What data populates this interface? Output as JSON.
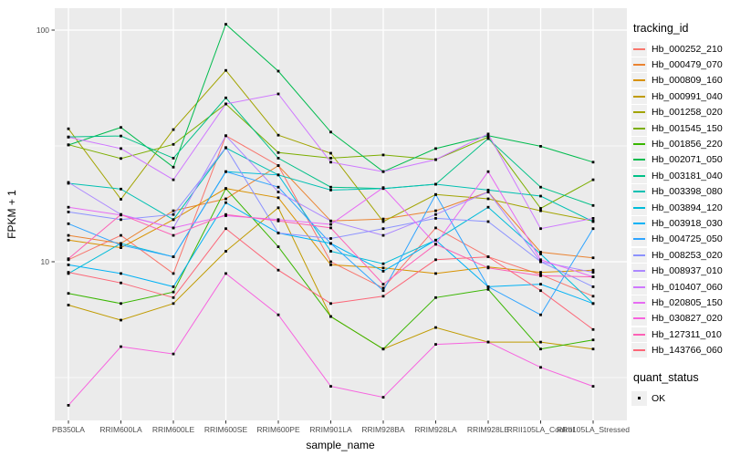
{
  "chart_data": {
    "type": "line",
    "title": "",
    "xlabel": "sample_name",
    "ylabel": "FPKM + 1",
    "y_scale": "log10",
    "y_ticks": [
      {
        "value": 100,
        "label": "100"
      },
      {
        "value": 10,
        "label": "10"
      }
    ],
    "y_minor_ticks": [
      31.623,
      3.162
    ],
    "ylim": [
      2.0,
      125.0
    ],
    "grid": "on",
    "panel_bg": "#EBEBEB",
    "grid_color": "#FFFFFF",
    "point_shape": "filled-square",
    "point_color": "#000000",
    "categories": [
      "PB350LA",
      "RRIM600LA",
      "RRIM600LE",
      "RRIM600SE",
      "RRIM600PE",
      "RRIM901LA",
      "RRIM928BA",
      "RRIM928LA",
      "RRIM928LE",
      "RRII105LA_Control",
      "RRII105LA_Stressed"
    ],
    "legend": {
      "title": "tracking_id",
      "position": "right"
    },
    "quant_legend": {
      "title": "quant_status",
      "items": [
        "OK"
      ]
    },
    "series": [
      {
        "name": "Hb_000252_210",
        "color": "#F8766D",
        "values": [
          10.2,
          13.0,
          8.9,
          35.0,
          26.0,
          10.0,
          7.7,
          14.0,
          10.5,
          8.8,
          7.1
        ]
      },
      {
        "name": "Hb_000479_070",
        "color": "#EA8331",
        "values": [
          13.0,
          12.0,
          16.6,
          18.7,
          26.0,
          15.0,
          15.3,
          16.6,
          20.0,
          11.0,
          10.4
        ]
      },
      {
        "name": "Hb_000809_160",
        "color": "#D89200",
        "values": [
          12.4,
          11.5,
          15.2,
          20.7,
          18.9,
          9.7,
          9.4,
          8.9,
          9.5,
          9.0,
          9.2
        ]
      },
      {
        "name": "Hb_000991_040",
        "color": "#C09B00",
        "values": [
          6.5,
          5.6,
          6.6,
          11.1,
          17.1,
          5.8,
          4.2,
          5.2,
          4.5,
          4.5,
          4.2
        ]
      },
      {
        "name": "Hb_001258_020",
        "color": "#A2A400",
        "values": [
          37.5,
          18.6,
          37.2,
          67.0,
          35.2,
          29.4,
          14.9,
          19.5,
          18.7,
          16.6,
          15.0
        ]
      },
      {
        "name": "Hb_001545_150",
        "color": "#7CAE00",
        "values": [
          32.0,
          27.9,
          32.1,
          48.0,
          29.6,
          28.0,
          28.9,
          27.6,
          34.5,
          17.0,
          22.6
        ]
      },
      {
        "name": "Hb_001856_220",
        "color": "#39B600",
        "values": [
          7.3,
          6.6,
          7.4,
          20.7,
          11.6,
          5.8,
          4.2,
          7.0,
          7.6,
          4.2,
          4.6
        ]
      },
      {
        "name": "Hb_002071_050",
        "color": "#00BB4E",
        "values": [
          31.9,
          38.0,
          25.6,
          106.0,
          66.5,
          36.3,
          24.5,
          30.8,
          35.0,
          31.5,
          26.9
        ]
      },
      {
        "name": "Hb_003181_040",
        "color": "#00C087",
        "values": [
          34.6,
          34.9,
          28.0,
          51.0,
          28.0,
          21.0,
          20.7,
          21.6,
          34.0,
          21.0,
          17.5
        ]
      },
      {
        "name": "Hb_003398_080",
        "color": "#00C0B2",
        "values": [
          21.8,
          20.6,
          15.2,
          31.0,
          23.7,
          20.4,
          20.7,
          21.6,
          20.4,
          19.2,
          14.9
        ]
      },
      {
        "name": "Hb_003894_120",
        "color": "#00BCD9",
        "values": [
          8.9,
          12.0,
          10.5,
          24.5,
          23.7,
          11.1,
          9.8,
          12.4,
          17.2,
          10.8,
          6.6
        ]
      },
      {
        "name": "Hb_003918_030",
        "color": "#00B2F5",
        "values": [
          9.7,
          8.9,
          7.8,
          18.0,
          13.3,
          12.0,
          9.1,
          12.4,
          7.8,
          8.0,
          6.6
        ]
      },
      {
        "name": "Hb_004725_050",
        "color": "#2FA4FF",
        "values": [
          14.6,
          11.8,
          10.5,
          24.5,
          21.0,
          12.0,
          7.5,
          19.5,
          7.8,
          5.9,
          13.9
        ]
      },
      {
        "name": "Hb_008253_020",
        "color": "#8C92FF",
        "values": [
          16.4,
          15.2,
          16.0,
          31.1,
          13.3,
          12.6,
          13.9,
          15.4,
          14.9,
          10.0,
          7.8
        ]
      },
      {
        "name": "Hb_008937_010",
        "color": "#AC88FF",
        "values": [
          22.0,
          16.0,
          14.0,
          35.0,
          20.0,
          15.0,
          13.0,
          16.0,
          20.0,
          10.0,
          9.0
        ]
      },
      {
        "name": "Hb_010407_060",
        "color": "#CF78FF",
        "values": [
          34.5,
          30.8,
          22.6,
          48.0,
          53.0,
          26.9,
          24.5,
          27.6,
          35.6,
          13.9,
          15.4
        ]
      },
      {
        "name": "Hb_020805_150",
        "color": "#E76BF3",
        "values": [
          17.2,
          15.9,
          14.0,
          15.8,
          15.2,
          14.5,
          20.9,
          11.9,
          24.5,
          10.2,
          8.6
        ]
      },
      {
        "name": "Hb_030827_020",
        "color": "#F763DF",
        "values": [
          2.4,
          4.3,
          4.0,
          8.9,
          5.9,
          2.9,
          2.6,
          4.4,
          4.5,
          3.5,
          2.9
        ]
      },
      {
        "name": "Hb_127311_010",
        "color": "#FD61B6",
        "values": [
          10.3,
          16.0,
          13.0,
          16.0,
          15.0,
          14.0,
          8.0,
          11.9,
          9.4,
          8.7,
          8.6
        ]
      },
      {
        "name": "Hb_143766_060",
        "color": "#FC6778",
        "values": [
          9.0,
          8.1,
          7.0,
          13.9,
          9.2,
          6.6,
          7.1,
          10.2,
          10.5,
          7.5,
          5.1
        ]
      }
    ]
  }
}
